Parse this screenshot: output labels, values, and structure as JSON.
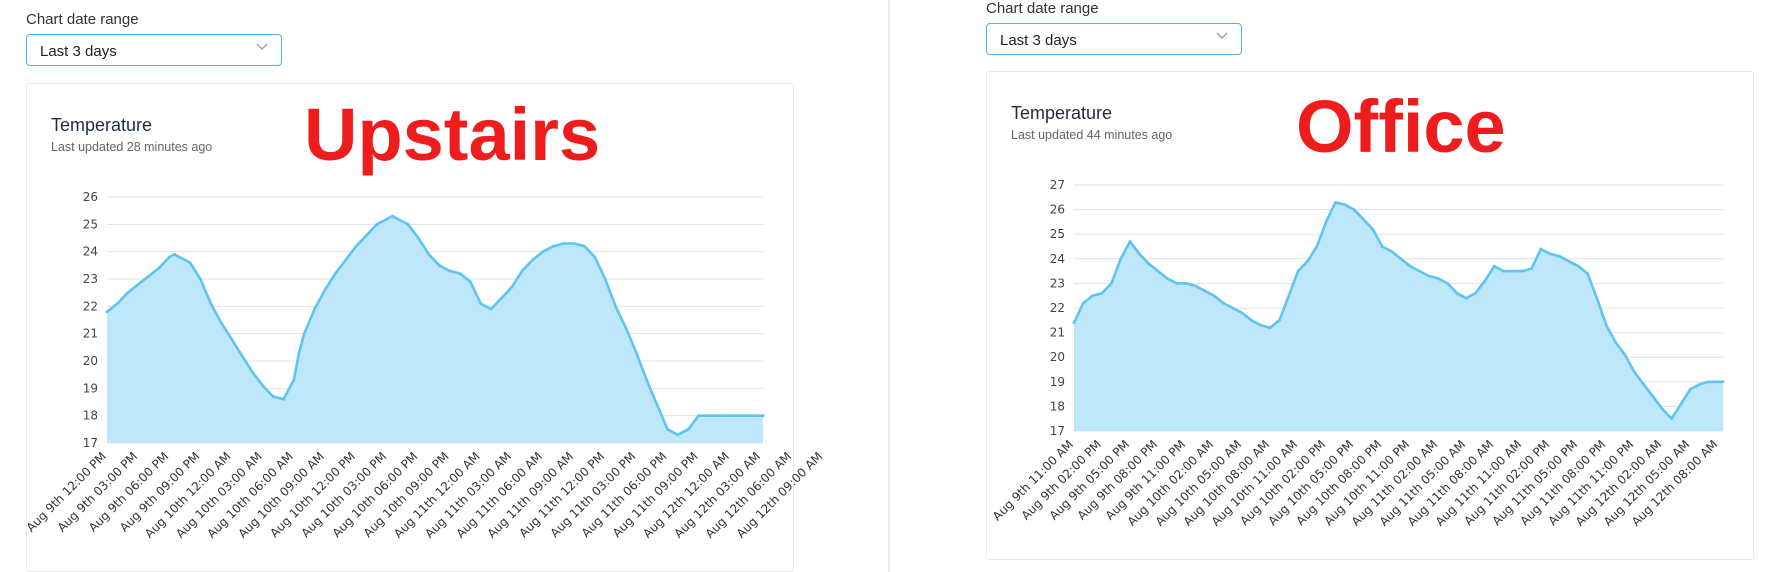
{
  "panes": [
    {
      "range_label": "Chart date range",
      "range_value": "Last 3 days",
      "overlay_label": "Upstairs",
      "chart_title": "Temperature",
      "chart_subtitle": "Last updated 28 minutes ago"
    },
    {
      "range_label": "Chart date range",
      "range_value": "Last 3 days",
      "overlay_label": "Office",
      "chart_title": "Temperature",
      "chart_subtitle": "Last updated 44 minutes ago"
    }
  ],
  "colors": {
    "line": "#5ec4f2",
    "fill": "#bfe7fa",
    "grid": "#e3e3e3",
    "overlay": "#ee1c1c",
    "select_border": "#4db4e8"
  },
  "icons": {
    "select": "chevron-down-icon"
  },
  "chart_data": [
    {
      "type": "area",
      "title": "Temperature",
      "yticks": [
        17,
        18,
        19,
        20,
        21,
        22,
        23,
        24,
        25,
        26
      ],
      "ylim": [
        17,
        26
      ],
      "grid": true,
      "x_tick_labels": [
        "Aug 9th 12:00 PM",
        "Aug 9th 03:00 PM",
        "Aug 9th 06:00 PM",
        "Aug 9th 09:00 PM",
        "Aug 10th 12:00 AM",
        "Aug 10th 03:00 AM",
        "Aug 10th 06:00 AM",
        "Aug 10th 09:00 AM",
        "Aug 10th 12:00 PM",
        "Aug 10th 03:00 PM",
        "Aug 10th 06:00 PM",
        "Aug 10th 09:00 PM",
        "Aug 11th 12:00 AM",
        "Aug 11th 03:00 AM",
        "Aug 11th 06:00 AM",
        "Aug 11th 09:00 AM",
        "Aug 11th 12:00 PM",
        "Aug 11th 03:00 PM",
        "Aug 11th 06:00 PM",
        "Aug 11th 09:00 PM",
        "Aug 12th 12:00 AM",
        "Aug 12th 03:00 AM",
        "Aug 12th 06:00 AM",
        "Aug 12th 09:00 AM"
      ],
      "x_hours_start": 12,
      "x_hours_end": 75.2,
      "x_hours_step": 3,
      "series": [
        {
          "x": [
            12,
            13,
            14,
            15,
            16,
            17,
            18,
            18.5,
            19,
            20,
            21,
            22,
            23,
            24,
            25,
            26,
            27,
            28,
            29,
            30,
            30.5,
            31,
            32,
            33,
            34,
            35,
            36,
            37,
            38,
            39,
            39.5,
            40,
            41,
            42,
            43,
            44,
            45,
            46,
            47,
            48,
            49,
            50,
            51,
            52,
            53,
            54,
            55,
            56,
            57,
            58,
            59,
            60,
            61,
            62,
            63,
            64,
            65,
            66,
            67,
            68,
            69,
            70,
            71,
            72,
            73,
            74,
            75.2
          ],
          "y": [
            21.8,
            22.1,
            22.5,
            22.8,
            23.1,
            23.4,
            23.8,
            23.9,
            23.8,
            23.6,
            23.0,
            22.1,
            21.4,
            20.8,
            20.2,
            19.6,
            19.1,
            18.7,
            18.6,
            19.3,
            20.3,
            21.0,
            21.9,
            22.6,
            23.2,
            23.7,
            24.2,
            24.6,
            25.0,
            25.2,
            25.3,
            25.2,
            25.0,
            24.5,
            23.9,
            23.5,
            23.3,
            23.2,
            22.9,
            22.1,
            21.9,
            22.3,
            22.7,
            23.3,
            23.7,
            24.0,
            24.2,
            24.3,
            24.3,
            24.2,
            23.8,
            23.0,
            22.0,
            21.2,
            20.3,
            19.3,
            18.4,
            17.5,
            17.3,
            17.5,
            18.0,
            18.0,
            18.0,
            18.0,
            18.0,
            18.0,
            18.0
          ]
        }
      ]
    },
    {
      "type": "area",
      "title": "Temperature",
      "yticks": [
        17,
        18,
        19,
        20,
        21,
        22,
        23,
        24,
        25,
        26,
        27
      ],
      "ylim": [
        17,
        27
      ],
      "grid": true,
      "x_tick_labels": [
        "Aug 9th 11:00 AM",
        "Aug 9th 02:00 PM",
        "Aug 9th 05:00 PM",
        "Aug 9th 08:00 PM",
        "Aug 9th 11:00 PM",
        "Aug 10th 02:00 AM",
        "Aug 10th 05:00 AM",
        "Aug 10th 08:00 AM",
        "Aug 10th 11:00 AM",
        "Aug 10th 02:00 PM",
        "Aug 10th 05:00 PM",
        "Aug 10th 08:00 PM",
        "Aug 10th 11:00 PM",
        "Aug 11th 02:00 AM",
        "Aug 11th 05:00 AM",
        "Aug 11th 08:00 AM",
        "Aug 11th 11:00 AM",
        "Aug 11th 02:00 PM",
        "Aug 11th 05:00 PM",
        "Aug 11th 08:00 PM",
        "Aug 11th 11:00 PM",
        "Aug 12th 02:00 AM",
        "Aug 12th 05:00 AM",
        "Aug 12th 08:00 AM"
      ],
      "x_hours_start": 11,
      "x_hours_end": 80.5,
      "x_hours_step": 3,
      "series": [
        {
          "x": [
            11,
            12,
            13,
            14,
            15,
            16,
            17,
            18,
            19,
            20,
            21,
            22,
            23,
            24,
            25,
            26,
            27,
            28,
            29,
            30,
            31,
            32,
            33,
            34,
            35,
            36,
            37,
            38,
            39,
            40,
            41,
            42,
            43,
            44,
            45,
            46,
            47,
            48,
            49,
            50,
            51,
            52,
            53,
            54,
            55,
            56,
            57,
            58,
            59,
            60,
            61,
            62,
            63,
            64,
            65,
            66,
            67,
            68,
            69,
            70,
            71,
            72,
            73,
            74,
            75,
            76,
            77,
            78,
            79,
            80.5
          ],
          "y": [
            21.4,
            22.2,
            22.5,
            22.6,
            23.0,
            24.0,
            24.7,
            24.2,
            23.8,
            23.5,
            23.2,
            23.0,
            23.0,
            22.9,
            22.7,
            22.5,
            22.2,
            22.0,
            21.8,
            21.5,
            21.3,
            21.2,
            21.5,
            22.5,
            23.5,
            23.9,
            24.5,
            25.5,
            26.3,
            26.2,
            26.0,
            25.6,
            25.2,
            24.5,
            24.3,
            24.0,
            23.7,
            23.5,
            23.3,
            23.2,
            23.0,
            22.6,
            22.4,
            22.6,
            23.1,
            23.7,
            23.5,
            23.5,
            23.5,
            23.6,
            24.4,
            24.2,
            24.1,
            23.9,
            23.7,
            23.4,
            22.4,
            21.3,
            20.6,
            20.1,
            19.4,
            18.9,
            18.4,
            17.9,
            17.5,
            18.1,
            18.7,
            18.9,
            19.0,
            19.0
          ]
        }
      ]
    }
  ]
}
